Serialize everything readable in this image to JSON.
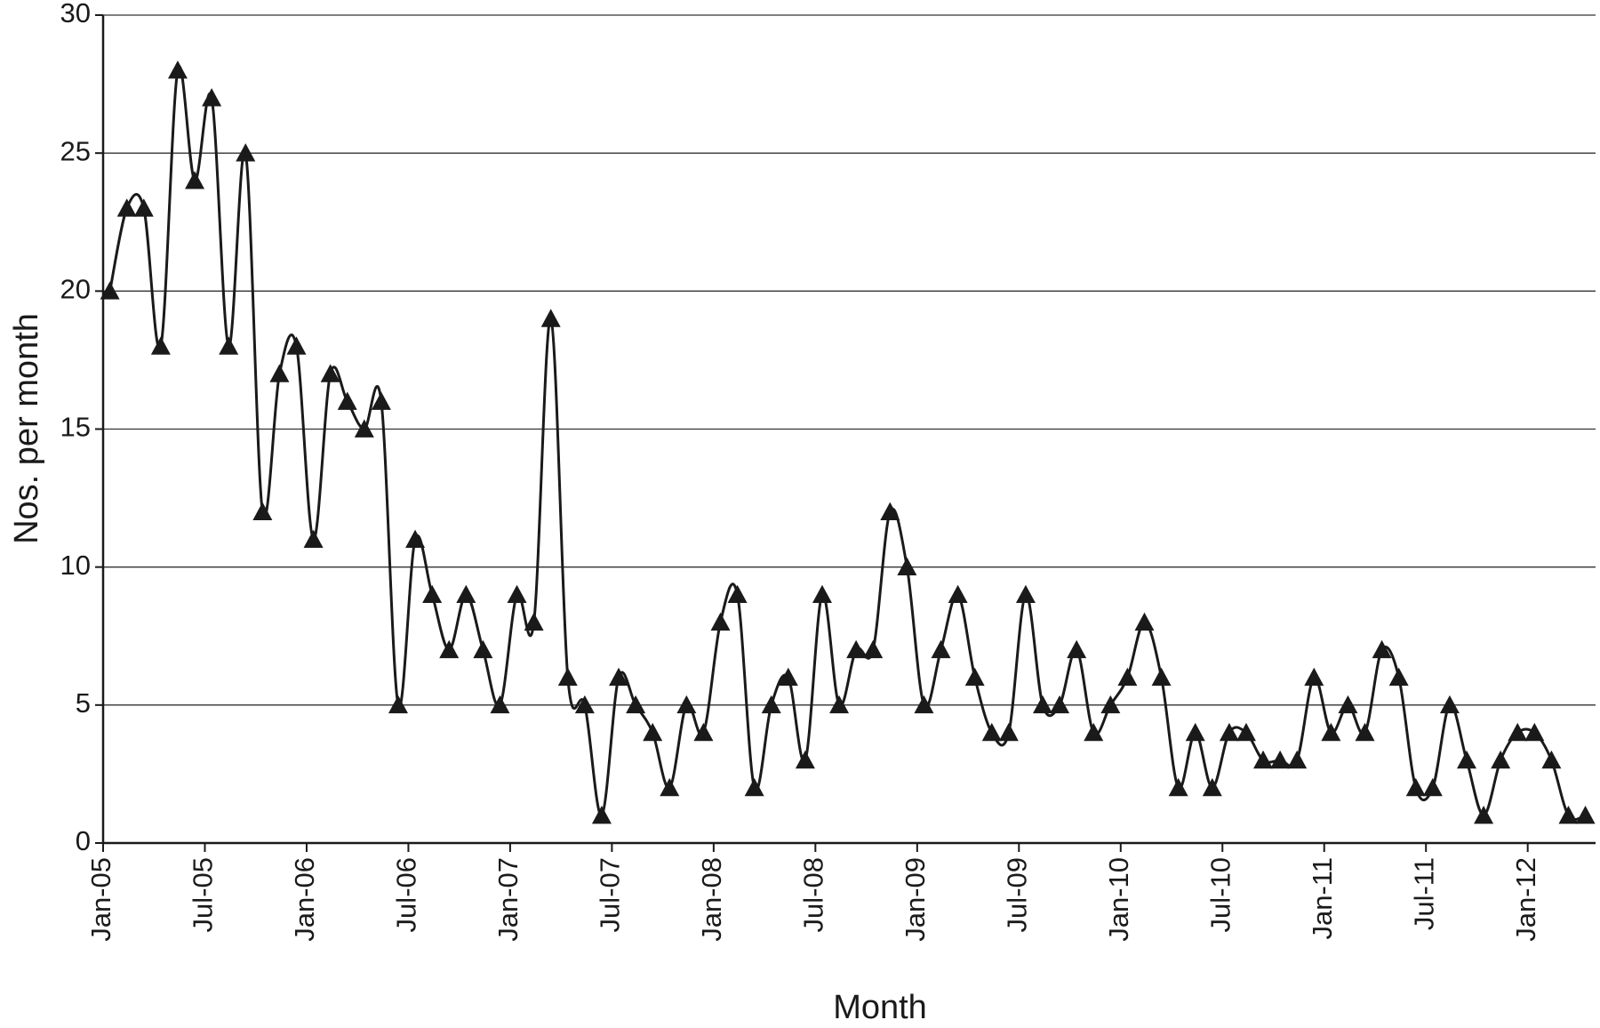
{
  "chart_data": {
    "type": "line",
    "x_label": "Month",
    "y_label": "Nos. per month",
    "categories": [
      "Jan-05",
      null,
      null,
      null,
      null,
      null,
      "Jul-05",
      null,
      null,
      null,
      null,
      null,
      "Jan-06",
      null,
      null,
      null,
      null,
      null,
      "Jul-06",
      null,
      null,
      null,
      null,
      null,
      "Jan-07",
      null,
      null,
      null,
      null,
      null,
      "Jul-07",
      null,
      null,
      null,
      null,
      null,
      "Jan-08",
      null,
      null,
      null,
      null,
      null,
      "Jul-08",
      null,
      null,
      null,
      null,
      null,
      "Jan-09",
      null,
      null,
      null,
      null,
      null,
      "Jul-09",
      null,
      null,
      null,
      null,
      null,
      "Jan-10",
      null,
      null,
      null,
      null,
      null,
      "Jul-10",
      null,
      null,
      null,
      null,
      null,
      "Jan-11",
      null,
      null,
      null,
      null,
      null,
      "Jul-11",
      null,
      null,
      null,
      null,
      null,
      "Jan-12",
      null,
      null,
      null
    ],
    "series": [
      {
        "name": "Nos. per month",
        "color": "#1a1a1a",
        "values": [
          20,
          23,
          23,
          18,
          28,
          24,
          27,
          18,
          25,
          12,
          17,
          18,
          11,
          17,
          16,
          15,
          16,
          5,
          11,
          9,
          7,
          9,
          7,
          5,
          9,
          8,
          19,
          6,
          5,
          1,
          6,
          5,
          4,
          2,
          5,
          4,
          8,
          9,
          2,
          5,
          6,
          3,
          9,
          5,
          7,
          7,
          12,
          10,
          5,
          7,
          9,
          6,
          4,
          4,
          9,
          5,
          5,
          7,
          4,
          5,
          6,
          8,
          6,
          2,
          4,
          2,
          4,
          4,
          3,
          3,
          3,
          6,
          4,
          5,
          4,
          7,
          6,
          2,
          2,
          5,
          3,
          1,
          3,
          4,
          4,
          3,
          1,
          1
        ]
      }
    ],
    "ylim": [
      0,
      30
    ],
    "yticks": [
      0,
      5,
      10,
      15,
      20,
      25,
      30
    ],
    "grid": true,
    "smooth": true,
    "marker": "triangle"
  }
}
